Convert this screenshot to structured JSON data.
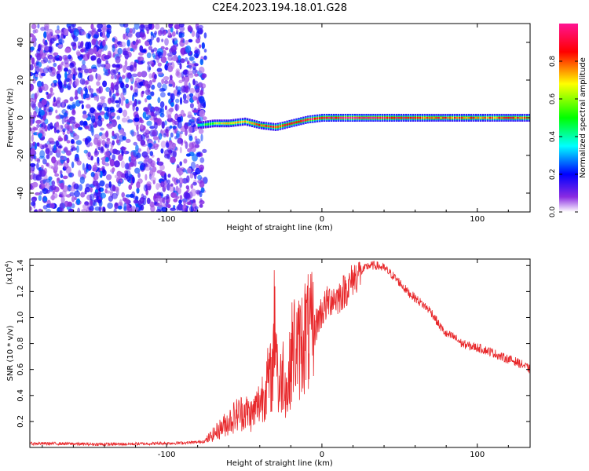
{
  "title": "C2E4.2023.194.18.01.G28",
  "chart_data": [
    {
      "type": "heatmap",
      "xlabel": "Height of straight line (km)",
      "ylabel": "Frequency (Hz)",
      "xlim": [
        -188,
        134
      ],
      "ylim": [
        -50,
        50
      ],
      "x_ticks": [
        -100,
        0,
        100
      ],
      "y_ticks": [
        -40,
        -20,
        0,
        20,
        40
      ],
      "noise_region_x": [
        -188,
        -75
      ],
      "signal_ridge": {
        "x": [
          -80,
          -70,
          -60,
          -50,
          -40,
          -30,
          -20,
          -10,
          0,
          10,
          20,
          40,
          60,
          80,
          100,
          134
        ],
        "frequency": [
          -4,
          -3,
          -3,
          -2,
          -4,
          -5,
          -3,
          -1,
          0,
          0,
          0,
          0,
          0,
          0,
          0,
          0
        ],
        "amplitude": [
          0.4,
          0.6,
          0.7,
          0.75,
          0.8,
          0.85,
          0.9,
          0.9,
          0.95,
          0.95,
          1.0,
          0.9,
          0.85,
          0.8,
          0.8,
          0.8
        ]
      },
      "colorbar": {
        "label": "Normalized spectral amplitude",
        "range": [
          0,
          1
        ],
        "ticks": [
          "0.0",
          "0.2",
          "0.4",
          "0.6",
          "0.8"
        ],
        "colors": [
          "#ffffff",
          "#8a2be2",
          "#0000ff",
          "#00ffff",
          "#00ff00",
          "#ffff00",
          "#ff0000",
          "#ff1493"
        ]
      }
    },
    {
      "type": "line",
      "xlabel": "Height of straight line (km)",
      "ylabel": "SNR (10 * v/v)",
      "y_multiplier": "(x10",
      "y_multiplier_exp": "4",
      "xlim": [
        -188,
        134
      ],
      "ylim": [
        0,
        1.45
      ],
      "x_ticks": [
        -100,
        0,
        100
      ],
      "y_ticks": [
        0.2,
        0.4,
        0.6,
        0.8,
        1.0,
        1.2,
        1.4
      ],
      "color": "#e8282b",
      "series": [
        {
          "x": [
            -188,
            -170,
            -150,
            -130,
            -110,
            -90,
            -80,
            -75,
            -70,
            -65,
            -60,
            -55,
            -50,
            -45,
            -40,
            -35,
            -32,
            -30,
            -28,
            -25,
            -22,
            -20,
            -18,
            -15,
            -12,
            -10,
            -8,
            -5,
            -2,
            0,
            3,
            6,
            10,
            14,
            18,
            20,
            25,
            30,
            35,
            40,
            45,
            50,
            55,
            60,
            65,
            70,
            75,
            80,
            85,
            90,
            95,
            100,
            105,
            110,
            115,
            120,
            125,
            130,
            134
          ],
          "y": [
            0.03,
            0.03,
            0.025,
            0.025,
            0.03,
            0.035,
            0.04,
            0.05,
            0.1,
            0.15,
            0.2,
            0.25,
            0.28,
            0.25,
            0.35,
            0.5,
            0.55,
            1.1,
            0.4,
            0.6,
            0.4,
            0.7,
            0.8,
            0.75,
            0.85,
            0.9,
            0.85,
            0.9,
            1.0,
            1.05,
            1.1,
            1.15,
            1.15,
            1.2,
            1.25,
            1.3,
            1.35,
            1.4,
            1.4,
            1.38,
            1.33,
            1.27,
            1.2,
            1.15,
            1.1,
            1.05,
            0.95,
            0.87,
            0.85,
            0.8,
            0.78,
            0.77,
            0.75,
            0.73,
            0.7,
            0.68,
            0.66,
            0.63,
            0.6
          ]
        }
      ]
    }
  ]
}
